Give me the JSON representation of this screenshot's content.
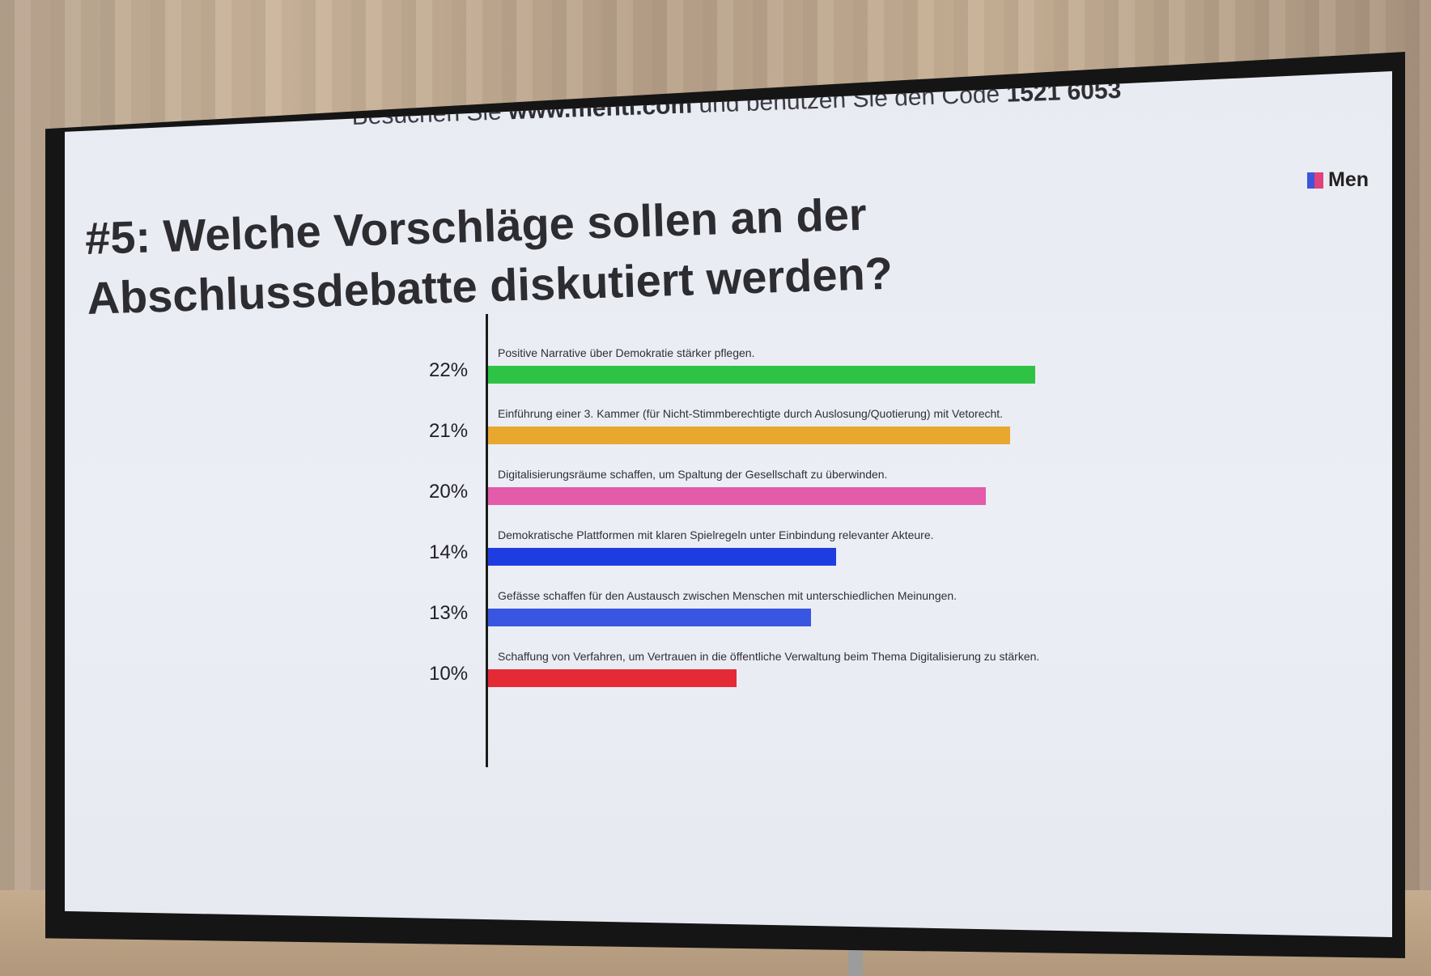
{
  "scene": {
    "header": {
      "prefix": "Besuchen Sie",
      "site": "www.menti.com",
      "middle": "und benutzen Sie den Code",
      "code": "1521 6053"
    },
    "logo_text": "Men",
    "title_line1": "#5: Welche Vorschläge sollen an der",
    "title_line2": "Abschlussdebatte diskutiert werden?"
  },
  "chart_data": {
    "type": "bar",
    "orientation": "horizontal",
    "categories": [
      "Positive Narrative über Demokratie stärker pflegen.",
      "Einführung einer 3. Kammer (für Nicht-Stimmberechtigte durch Auslosung/Quotierung) mit Vetorecht.",
      "Digitalisierungsräume schaffen, um Spaltung der Gesellschaft zu überwinden.",
      "Demokratische Plattformen mit klaren Spielregeln unter Einbindung relevanter Akteure.",
      "Gefässe schaffen für den Austausch zwischen Menschen mit unterschiedlichen Meinungen.",
      "Schaffung von Verfahren, um Vertrauen in die öffentliche Verwaltung beim Thema Digitalisierung zu stärken."
    ],
    "values": [
      22,
      21,
      20,
      14,
      13,
      10
    ],
    "value_labels": [
      "22%",
      "21%",
      "20%",
      "14%",
      "13%",
      "10%"
    ],
    "colors": [
      "#2fc346",
      "#e8a82f",
      "#e35ba9",
      "#1e3de0",
      "#3856e2",
      "#e42a35"
    ],
    "xlim": [
      0,
      22
    ]
  }
}
